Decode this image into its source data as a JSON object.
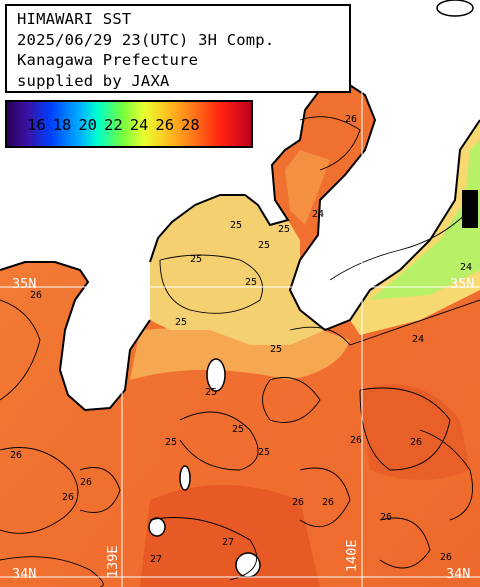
{
  "title": {
    "lines": [
      "HIMAWARI SST",
      "2025/06/29 23(UTC) 3H Comp.",
      "Kanagawa Prefecture",
      "supplied by JAXA"
    ]
  },
  "legend": {
    "labels": [
      "16",
      "18",
      "20",
      "22",
      "24",
      "26",
      "28"
    ]
  },
  "grid": {
    "lat_labels": {
      "north": "35N",
      "north_right": "35N",
      "south": "34N",
      "south_right": "34N"
    },
    "lon_labels": {
      "west": "139E",
      "east": "140E"
    }
  },
  "contour_labels": [
    "26",
    "26",
    "25",
    "25",
    "25",
    "25",
    "25",
    "25",
    "25",
    "25",
    "25",
    "25",
    "25",
    "26",
    "26",
    "26",
    "26",
    "26",
    "26",
    "24",
    "24",
    "24",
    "27",
    "27",
    "26",
    "26",
    "26"
  ],
  "colors": {
    "land": "#ffffff",
    "sea_warm": "#f07a30",
    "sea_mid": "#f5a048",
    "sea_cool": "#f8d870",
    "sea_cold": "#b8f068",
    "contour": "#000000",
    "grid": "#ffffff",
    "missing": "#000000"
  }
}
